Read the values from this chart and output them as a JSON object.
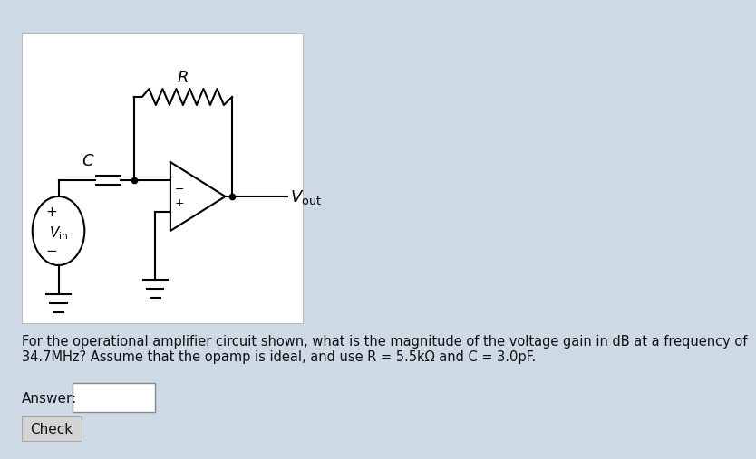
{
  "bg_color": "#cdd9e5",
  "panel_color": "#ffffff",
  "text_question": "For the operational amplifier circuit shown, what is the magnitude of the voltage gain in dB at a frequency of\n34.7MHz? Assume that the opamp is ideal, and use R = 5.5kΩ and C = 3.0pF.",
  "answer_label": "Answer:",
  "check_label": "Check",
  "line_color": "#000000",
  "line_width": 1.5,
  "font_size_main": 10.5,
  "font_size_labels": 13
}
